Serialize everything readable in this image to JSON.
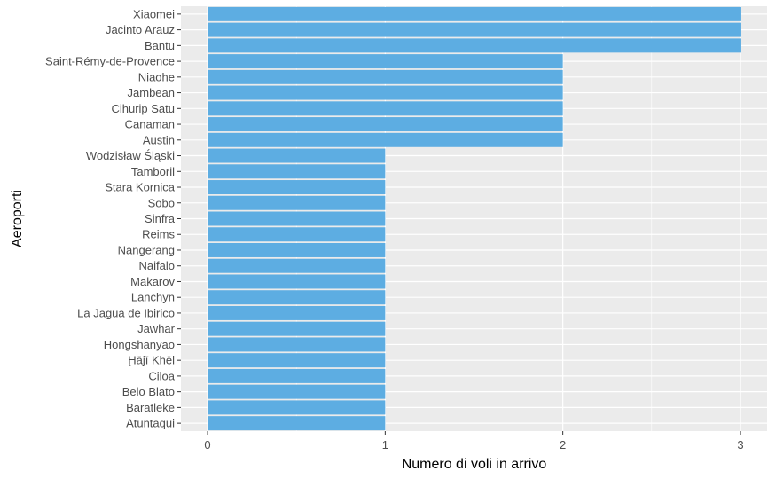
{
  "chart_data": {
    "type": "bar",
    "orientation": "horizontal",
    "title": "",
    "xlabel": "Numero di voli in arrivo",
    "ylabel": "Aeroporti",
    "categories": [
      "Xiaomei",
      "Jacinto Arauz",
      "Bantu",
      "Saint-Rémy-de-Provence",
      "Niaohe",
      "Jambean",
      "Cihurip Satu",
      "Canaman",
      "Austin",
      "Wodzisław Śląski",
      "Tamboril",
      "Stara Kornica",
      "Sobo",
      "Sinfra",
      "Reims",
      "Nangerang",
      "Naifalo",
      "Makarov",
      "Lanchyn",
      "La Jagua de Ibirico",
      "Jawhar",
      "Hongshanyao",
      "Ḩājī Khēl",
      "Ciloa",
      "Belo Blato",
      "Baratleke",
      "Atuntaqui"
    ],
    "values": [
      3,
      3,
      3,
      2,
      2,
      2,
      2,
      2,
      2,
      1,
      1,
      1,
      1,
      1,
      1,
      1,
      1,
      1,
      1,
      1,
      1,
      1,
      1,
      1,
      1,
      1,
      1
    ],
    "xlim": [
      -0.15,
      3.15
    ],
    "xticks": [
      "0",
      "1",
      "2",
      "3"
    ],
    "grid": true,
    "bar_color": "#5DADE2",
    "panel_color": "#EBEBEB",
    "grid_color": "#FFFFFF"
  }
}
